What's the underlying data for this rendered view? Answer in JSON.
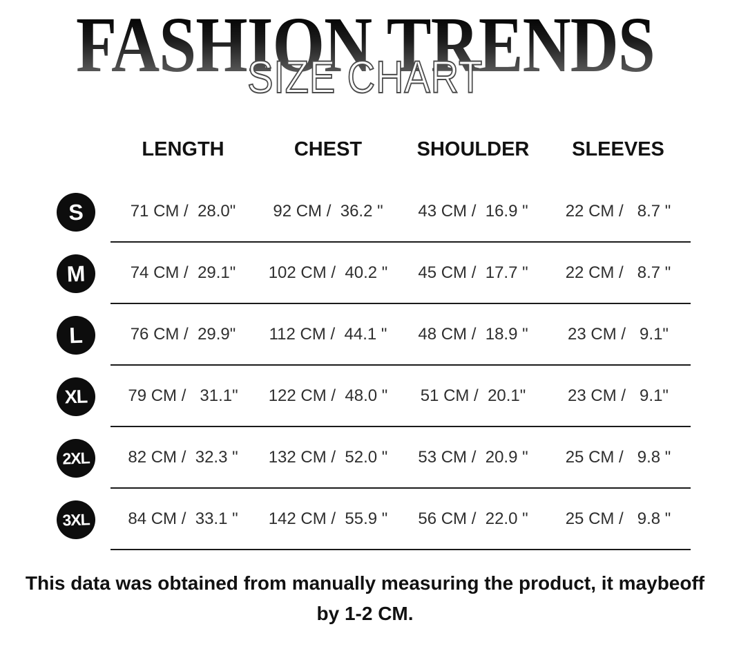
{
  "title": {
    "brand": "FASHION TRENDS",
    "overlay": "SIZE CHART"
  },
  "table": {
    "headers": [
      "LENGTH",
      "CHEST",
      "SHOULDER",
      "SLEEVES"
    ],
    "rows": [
      {
        "size": "S",
        "cells": [
          "71 CM /  28.0\"",
          "92 CM /  36.2 \"",
          "43 CM /  16.9 \"",
          "22 CM /   8.7 \""
        ]
      },
      {
        "size": "M",
        "cells": [
          "74 CM /  29.1\"",
          "102 CM /  40.2 \"",
          "45 CM /  17.7 \"",
          "22 CM /   8.7 \""
        ]
      },
      {
        "size": "L",
        "cells": [
          "76 CM /  29.9\"",
          "112 CM /  44.1 \"",
          "48 CM /  18.9 \"",
          "23 CM /   9.1\""
        ]
      },
      {
        "size": "XL",
        "cells": [
          "79 CM /   31.1\"",
          "122 CM /  48.0 \"",
          "51 CM /  20.1\"",
          "23 CM /   9.1\""
        ]
      },
      {
        "size": "2XL",
        "cells": [
          "82 CM /  32.3 \"",
          "132 CM /  52.0 \"",
          "53 CM /  20.9 \"",
          "25 CM /   9.8 \""
        ]
      },
      {
        "size": "3XL",
        "cells": [
          "84 CM /  33.1 \"",
          "142 CM /  55.9 \"",
          "56 CM /  22.0 \"",
          "25 CM /   9.8 \""
        ]
      }
    ]
  },
  "footer": {
    "line1": "This data was obtained from manually measuring the product, it maybeoff",
    "line2": "by 1-2 CM."
  },
  "colors": {
    "background": "#ffffff",
    "badge": "#0d0d0d",
    "header_text": "#121212",
    "cell_text": "#2f2f2f",
    "rule_line": "#1a1a1a",
    "title_gradient_top": "#000000",
    "title_gradient_bottom": "#6f6f6f",
    "overlay_fill": "#ffffff",
    "overlay_stroke": "#4b4b4b"
  }
}
